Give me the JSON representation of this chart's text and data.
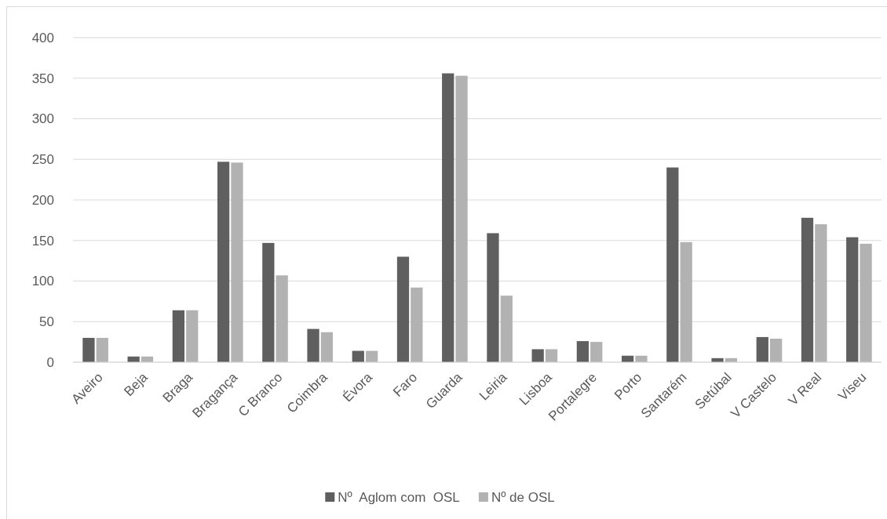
{
  "chart_data": {
    "type": "bar",
    "categories": [
      "Aveiro",
      "Beja",
      "Braga",
      "Bragança",
      "C Branco",
      "Coimbra",
      "Évora",
      "Faro",
      "Guarda",
      "Leiria",
      "Lisboa",
      "Portalegre",
      "Porto",
      "Santarém",
      "Setúbal",
      "V Castelo",
      "V Real",
      "Viseu"
    ],
    "series": [
      {
        "name": "Nº  Aglom com  OSL",
        "color": "#5f5f5f",
        "values": [
          30,
          7,
          64,
          247,
          147,
          41,
          14,
          130,
          356,
          159,
          16,
          26,
          8,
          240,
          5,
          31,
          178,
          154
        ]
      },
      {
        "name": "Nº de OSL",
        "color": "#b2b2b2",
        "values": [
          30,
          7,
          64,
          246,
          107,
          37,
          14,
          92,
          353,
          82,
          16,
          25,
          8,
          148,
          5,
          29,
          170,
          146
        ]
      }
    ],
    "ylim": [
      0,
      400
    ],
    "yticks": [
      0,
      50,
      100,
      150,
      200,
      250,
      300,
      350,
      400
    ],
    "grid": "y",
    "legend": "bottom"
  }
}
